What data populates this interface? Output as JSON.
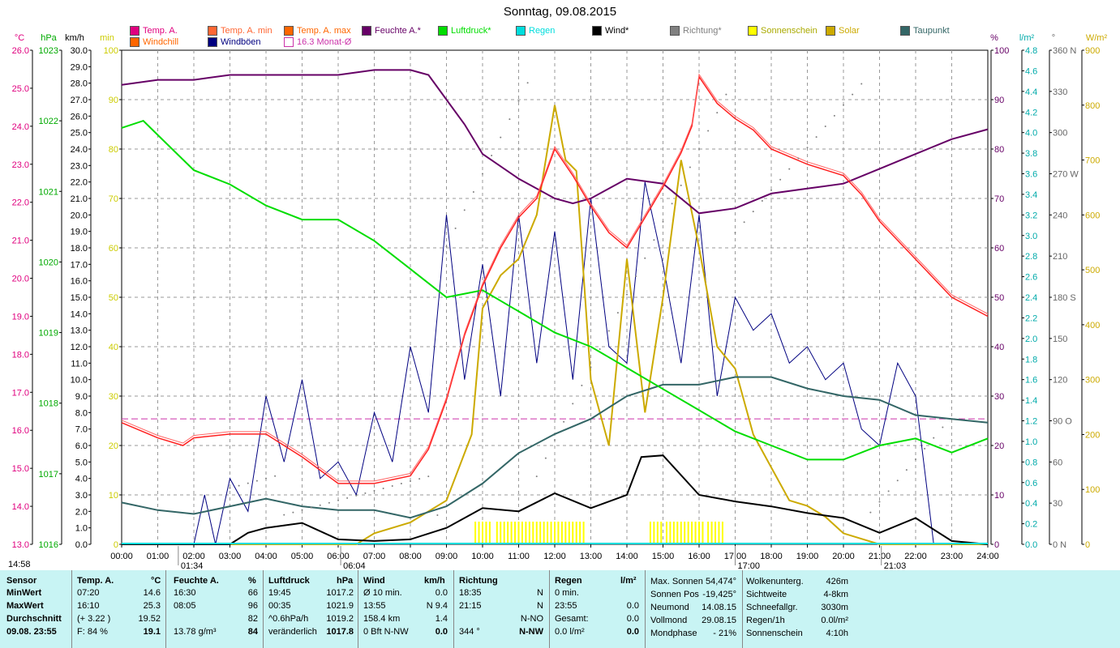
{
  "chart_data": {
    "type": "line",
    "title": "Sonntag, 09.08.2015",
    "x_ticks": [
      "00:00",
      "01:00",
      "02:00",
      "03:00",
      "04:00",
      "05:00",
      "06:00",
      "07:00",
      "08:00",
      "09:00",
      "10:00",
      "11:00",
      "12:00",
      "13:00",
      "14:00",
      "15:00",
      "16:00",
      "17:00",
      "18:00",
      "19:00",
      "20:00",
      "21:00",
      "22:00",
      "23:00",
      "24:00"
    ],
    "x_range_hours": [
      0,
      24
    ],
    "axes": {
      "temp_c": {
        "label": "°C",
        "range": [
          13.0,
          26.0
        ],
        "ticks": [
          "26.0",
          "25.0",
          "24.0",
          "23.0",
          "22.0",
          "21.0",
          "20.0",
          "19.0",
          "18.0",
          "17.0",
          "16.0",
          "15.0",
          "14.0",
          "13.0"
        ],
        "color": "#e0007f"
      },
      "pressure_hpa": {
        "label": "hPa",
        "range": [
          1016,
          1023
        ],
        "ticks": [
          "1023",
          "1022",
          "1021",
          "1020",
          "1019",
          "1018",
          "1017",
          "1016"
        ],
        "color": "#00aa00"
      },
      "wind_kmh": {
        "label": "km/h",
        "range": [
          0,
          30
        ],
        "ticks": [
          "30.0",
          "29.0",
          "28.0",
          "27.0",
          "26.0",
          "25.0",
          "24.0",
          "23.0",
          "22.0",
          "21.0",
          "20.0",
          "19.0",
          "18.0",
          "17.0",
          "16.0",
          "15.0",
          "14.0",
          "13.0",
          "12.0",
          "11.0",
          "10.0",
          "9.0",
          "8.0",
          "7.0",
          "6.0",
          "5.0",
          "4.0",
          "3.0",
          "2.0",
          "1.0",
          "0.0"
        ],
        "color": "#000000"
      },
      "sunshine_min": {
        "label": "min",
        "range": [
          0,
          100
        ],
        "ticks": [
          "100",
          "90",
          "80",
          "70",
          "60",
          "50",
          "40",
          "30",
          "20",
          "10",
          "0"
        ],
        "color": "#cccc00"
      },
      "humidity_pct": {
        "label": "%",
        "range": [
          0,
          100
        ],
        "ticks": [
          "100",
          "90",
          "80",
          "70",
          "60",
          "50",
          "40",
          "30",
          "20",
          "10",
          "0"
        ],
        "color": "#660066"
      },
      "rain_lm2": {
        "label": "l/m²",
        "range": [
          0,
          4.8
        ],
        "ticks": [
          "4.8",
          "4.6",
          "4.4",
          "4.2",
          "4.0",
          "3.8",
          "3.6",
          "3.4",
          "3.2",
          "3.0",
          "2.8",
          "2.6",
          "2.4",
          "2.2",
          "2.0",
          "1.8",
          "1.6",
          "1.4",
          "1.2",
          "1.0",
          "0.8",
          "0.6",
          "0.4",
          "0.2",
          "0.0"
        ],
        "color": "#00cccc"
      },
      "direction_deg": {
        "label": "°",
        "range": [
          0,
          360
        ],
        "ticks": [
          "360 N",
          "330",
          "300",
          "270 W",
          "240",
          "210",
          "180 S",
          "150",
          "120",
          "90 O",
          "60",
          "30",
          "0 N"
        ],
        "color": "#666666"
      },
      "solar_wm2": {
        "label": "W/m²",
        "range": [
          0,
          900
        ],
        "ticks": [
          "900",
          "800",
          "700",
          "600",
          "500",
          "400",
          "300",
          "200",
          "100",
          "0"
        ],
        "color": "#ccaa00"
      }
    },
    "legend": [
      {
        "name": "Temp. A.",
        "color": "#e0007f"
      },
      {
        "name": "Temp. A. min",
        "color": "#ff6633"
      },
      {
        "name": "Temp. A. max",
        "color": "#ff6600"
      },
      {
        "name": "Feuchte A.*",
        "color": "#660066"
      },
      {
        "name": "Luftdruck*",
        "color": "#00dd00"
      },
      {
        "name": "Regen",
        "color": "#00dddd"
      },
      {
        "name": "Wind*",
        "color": "#000000"
      },
      {
        "name": "Richtung*",
        "color": "#808080"
      },
      {
        "name": "Sonnenschein",
        "color": "#ffff00"
      },
      {
        "name": "Solar",
        "color": "#ccaa00"
      },
      {
        "name": "Taupunkt",
        "color": "#336666"
      },
      {
        "name": "Windchill",
        "color": "#ff6600"
      },
      {
        "name": "Windböen",
        "color": "#000080"
      },
      {
        "name": "16.3 Monat-Ø",
        "color": "#cc33aa",
        "hollow": true
      }
    ],
    "monthly_avg_temp_c": 16.3,
    "series": [
      {
        "name": "Temp. A.",
        "axis": "temp_c",
        "color": "#ff2020",
        "x": [
          0,
          1,
          1.7,
          2,
          3,
          4,
          5,
          6,
          7,
          8,
          8.5,
          9,
          9.5,
          10,
          10.5,
          11,
          11.5,
          12,
          12.5,
          13,
          13.5,
          14,
          14.5,
          15,
          15.5,
          15.8,
          16,
          16.5,
          17,
          17.5,
          18,
          19,
          20,
          20.5,
          21,
          22,
          23,
          24
        ],
        "values": [
          16.2,
          15.8,
          15.6,
          15.8,
          15.9,
          15.9,
          15.3,
          14.6,
          14.6,
          14.8,
          15.5,
          16.8,
          18.5,
          19.8,
          20.8,
          21.6,
          22.1,
          23.4,
          22.7,
          21.9,
          21.2,
          20.8,
          21.6,
          22.4,
          23.3,
          24.0,
          25.3,
          24.6,
          24.2,
          23.9,
          23.4,
          23.0,
          22.7,
          22.2,
          21.5,
          20.5,
          19.5,
          19.0
        ]
      },
      {
        "name": "Feuchte A.*",
        "axis": "humidity_pct",
        "color": "#660066",
        "x": [
          0,
          1,
          2,
          3,
          4,
          5,
          6,
          7,
          8,
          8.5,
          9,
          9.5,
          10,
          11,
          12,
          12.5,
          13,
          13.5,
          14,
          15,
          16,
          17,
          18,
          19,
          20,
          21,
          22,
          23,
          24
        ],
        "values": [
          93,
          94,
          94,
          95,
          95,
          95,
          95,
          96,
          96,
          95,
          90,
          85,
          79,
          74,
          70,
          69,
          70,
          72,
          74,
          73,
          67,
          68,
          71,
          72,
          73,
          76,
          79,
          82,
          84
        ]
      },
      {
        "name": "Luftdruck*",
        "axis": "pressure_hpa",
        "color": "#00dd00",
        "x": [
          0,
          0.6,
          1,
          2,
          3,
          4,
          5,
          6,
          7,
          8,
          9,
          10,
          11,
          12,
          13,
          14,
          15,
          16,
          17,
          18,
          19,
          20,
          21,
          22,
          23,
          24
        ],
        "values": [
          1021.9,
          1022.0,
          1021.8,
          1021.3,
          1021.1,
          1020.8,
          1020.6,
          1020.6,
          1020.3,
          1019.9,
          1019.5,
          1019.6,
          1019.3,
          1019.0,
          1018.8,
          1018.5,
          1018.2,
          1017.9,
          1017.6,
          1017.4,
          1017.2,
          1017.2,
          1017.4,
          1017.5,
          1017.3,
          1017.5
        ]
      },
      {
        "name": "Taupunkt",
        "axis": "temp_c",
        "color": "#336666",
        "x": [
          0,
          1,
          2,
          3,
          4,
          5,
          6,
          7,
          8,
          9,
          10,
          11,
          12,
          13,
          14,
          15,
          16,
          17,
          18,
          19,
          20,
          21,
          22,
          23,
          24
        ],
        "values": [
          14.1,
          13.9,
          13.8,
          14.0,
          14.2,
          14.0,
          13.9,
          13.9,
          13.7,
          14.0,
          14.6,
          15.4,
          15.9,
          16.3,
          16.9,
          17.2,
          17.2,
          17.4,
          17.4,
          17.1,
          16.9,
          16.8,
          16.4,
          16.3,
          16.2
        ]
      },
      {
        "name": "Wind*",
        "axis": "wind_kmh",
        "color": "#000000",
        "x": [
          0,
          1,
          2,
          3,
          3.5,
          4,
          5,
          6,
          7,
          8,
          9,
          10,
          11,
          12,
          13,
          14,
          14.4,
          15,
          16,
          17,
          18,
          19,
          20,
          21,
          22,
          23,
          24
        ],
        "values": [
          0,
          0,
          0,
          0,
          0.7,
          1.0,
          1.3,
          0.3,
          0.2,
          0.3,
          1.0,
          2.2,
          2.0,
          3.1,
          2.2,
          3.0,
          5.3,
          5.4,
          3.0,
          2.6,
          2.3,
          1.9,
          1.6,
          0.7,
          1.6,
          0.2,
          0
        ]
      },
      {
        "name": "Solar",
        "axis": "solar_wm2",
        "color": "#ccaa00",
        "x": [
          0,
          6.5,
          7,
          8,
          9,
          9.7,
          10,
          10.5,
          11,
          11.5,
          12,
          12.3,
          12.6,
          13,
          13.5,
          14,
          14.5,
          15,
          15.5,
          16,
          16.5,
          17,
          17.5,
          18,
          18.5,
          19,
          19.5,
          20,
          21,
          22,
          24
        ],
        "values": [
          0,
          0,
          20,
          40,
          80,
          200,
          430,
          490,
          520,
          600,
          800,
          700,
          680,
          300,
          180,
          520,
          240,
          450,
          700,
          540,
          360,
          320,
          200,
          140,
          80,
          70,
          50,
          20,
          0,
          0,
          0
        ]
      },
      {
        "name": "Windböen",
        "axis": "wind_kmh",
        "color": "#000080",
        "x": [
          0,
          2,
          2.3,
          2.6,
          3,
          3.5,
          4,
          4.5,
          5,
          5.5,
          6,
          6.5,
          7,
          7.5,
          8,
          8.5,
          9,
          9.5,
          10,
          10.5,
          11,
          11.5,
          12,
          12.5,
          13,
          13.5,
          14,
          14.5,
          15,
          15.5,
          16,
          16.5,
          17,
          17.5,
          18,
          18.5,
          19,
          19.5,
          20,
          20.5,
          21,
          21.5,
          22,
          22.5,
          23,
          24
        ],
        "values": [
          0,
          0,
          3,
          0,
          4,
          2,
          9,
          5,
          10,
          4,
          5,
          3,
          8,
          5,
          12,
          8,
          20,
          10,
          17,
          9,
          20,
          11,
          19,
          10,
          21,
          12,
          11,
          22,
          17,
          11,
          20,
          9,
          15,
          13,
          14,
          11,
          12,
          10,
          11,
          7,
          6,
          11,
          9,
          0,
          0,
          0
        ]
      }
    ]
  },
  "footer": {
    "headers": {
      "sensor": "Sensor",
      "temp": "Temp. A.",
      "temp_unit": "°C",
      "hum": "Feuchte A.",
      "hum_unit": "%",
      "press": "Luftdruck",
      "press_unit": "hPa",
      "wind": "Wind",
      "wind_unit": "km/h",
      "dir": "Richtung",
      "rain": "Regen",
      "rain_unit": "l/m²"
    },
    "rows": {
      "min": {
        "label": "MinWert",
        "temp_time": "07:20",
        "temp_val": "14.6",
        "hum_time": "16:30",
        "hum_val": "66",
        "press_time": "19:45",
        "press_val": "1017.2",
        "wind_label": "Ø 10 min.",
        "wind_val": "0.0",
        "dir_time": "18:35",
        "dir_val": "N",
        "rain_label": "0 min.",
        "rain_val": ""
      },
      "max": {
        "label": "MaxWert",
        "temp_time": "16:10",
        "temp_val": "25.3",
        "hum_time": "08:05",
        "hum_val": "96",
        "press_time": "00:35",
        "press_val": "1021.9",
        "wind_label": "13:55",
        "wind_val": "N 9.4",
        "dir_time": "21:15",
        "dir_val": "N",
        "rain_label": "23:55",
        "rain_val": "0.0"
      },
      "avg": {
        "label": "Durchschnitt",
        "temp_time": "(+ 3.22 )",
        "temp_val": "19.52",
        "hum_time": "",
        "hum_val": "82",
        "press_time": "^0.6hPa/h",
        "press_val": "1019.2",
        "wind_label": "158.4 km",
        "wind_val": "1.4",
        "dir_time": "",
        "dir_val": "N-NO",
        "rain_label": "Gesamt:",
        "rain_val": "0.0"
      },
      "cur": {
        "label": "09.08. 23:55",
        "temp_time": "F: 84 %",
        "temp_val": "19.1",
        "hum_time": "13.78 g/m³",
        "hum_val": "84",
        "press_time": "veränderlich",
        "press_val": "1017.8",
        "wind_label": "0 Bft N-NW",
        "wind_val": "0.0",
        "dir_time": "344 °",
        "dir_val": "N-NW",
        "rain_label": "0.0 l/m²",
        "rain_val": "0.0"
      }
    },
    "astro_left": [
      [
        "Max. Sonnen",
        "54,474°"
      ],
      [
        "Sonnen Pos",
        "-19,425°"
      ],
      [
        "Neumond",
        "14.08.15"
      ],
      [
        "Vollmond",
        "29.08.15"
      ],
      [
        "Mondphase",
        "- 21%"
      ]
    ],
    "astro_right": [
      [
        "Wolkenunterg.",
        "426m"
      ],
      [
        "Sichtweite",
        "4-8km"
      ],
      [
        "Schneefallgr.",
        "3030m"
      ],
      [
        "Regen/1h",
        "0.0l/m²"
      ],
      [
        "Sonnenschein",
        "4:10h"
      ]
    ]
  },
  "time_markers": {
    "sunrise": "06:04",
    "sunset": "21:03",
    "moonset": "01:34",
    "moonrise": "17:00",
    "clock": "14:58"
  }
}
